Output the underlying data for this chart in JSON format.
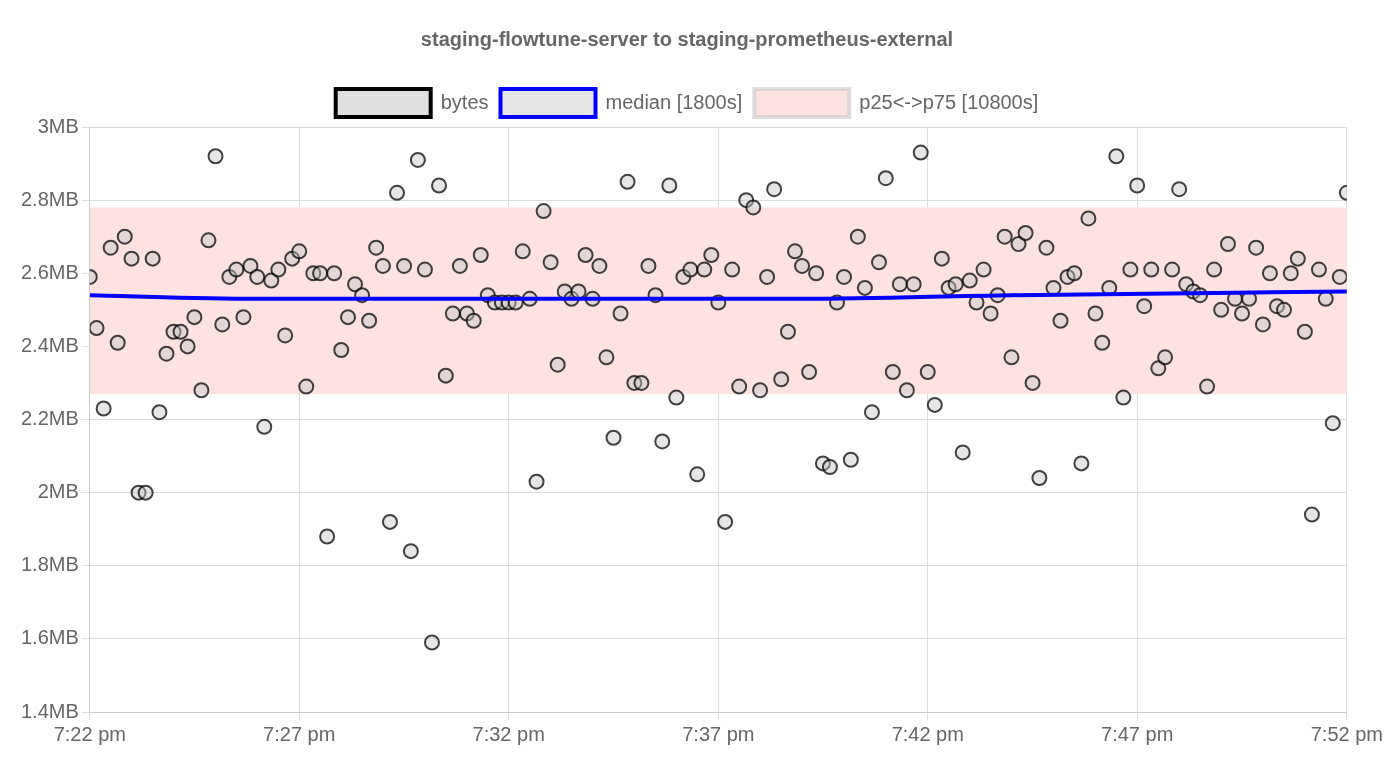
{
  "chart_data": {
    "type": "scatter",
    "title": "staging-flowtune-server to staging-prometheus-external",
    "xlim": [
      19.3667,
      19.8667
    ],
    "xticks": [
      {
        "value": 19.3667,
        "label": "7:22 pm"
      },
      {
        "value": 19.45,
        "label": "7:27 pm"
      },
      {
        "value": 19.5333,
        "label": "7:32 pm"
      },
      {
        "value": 19.6167,
        "label": "7:37 pm"
      },
      {
        "value": 19.7,
        "label": "7:42 pm"
      },
      {
        "value": 19.7833,
        "label": "7:47 pm"
      },
      {
        "value": 19.8667,
        "label": "7:52 pm"
      }
    ],
    "ylim": [
      1.4,
      3
    ],
    "yticks": [
      {
        "value": 1.4,
        "label": "1.4MB"
      },
      {
        "value": 1.6,
        "label": "1.6MB"
      },
      {
        "value": 1.8,
        "label": "1.8MB"
      },
      {
        "value": 2,
        "label": "2MB"
      },
      {
        "value": 2.2,
        "label": "2.2MB"
      },
      {
        "value": 2.4,
        "label": "2.4MB"
      },
      {
        "value": 2.6,
        "label": "2.6MB"
      },
      {
        "value": 2.8,
        "label": "2.8MB"
      },
      {
        "value": 3,
        "label": "3MB"
      }
    ],
    "grid": true,
    "legend": "top",
    "x": [
      19.3667,
      19.3694,
      19.3722,
      19.375,
      19.3778,
      19.3806,
      19.3833,
      19.3861,
      19.3889,
      19.3917,
      19.3944,
      19.3972,
      19.4,
      19.4028,
      19.4056,
      19.4083,
      19.4111,
      19.4139,
      19.4167,
      19.4194,
      19.4222,
      19.425,
      19.4278,
      19.4306,
      19.4333,
      19.4361,
      19.4389,
      19.4417,
      19.4444,
      19.4472,
      19.45,
      19.4528,
      19.4556,
      19.4583,
      19.4611,
      19.4639,
      19.4667,
      19.4694,
      19.4722,
      19.475,
      19.4778,
      19.4806,
      19.4833,
      19.4861,
      19.4889,
      19.4917,
      19.4944,
      19.4972,
      19.5,
      19.5028,
      19.5056,
      19.5083,
      19.5111,
      19.5139,
      19.5167,
      19.5194,
      19.5222,
      19.525,
      19.5278,
      19.5306,
      19.5333,
      19.5361,
      19.5389,
      19.5417,
      19.5444,
      19.5472,
      19.55,
      19.5528,
      19.5556,
      19.5583,
      19.5611,
      19.5639,
      19.5667,
      19.5694,
      19.5722,
      19.575,
      19.5778,
      19.5806,
      19.5833,
      19.5861,
      19.5889,
      19.5917,
      19.5944,
      19.5972,
      19.6,
      19.6028,
      19.6056,
      19.6083,
      19.6111,
      19.6139,
      19.6167,
      19.6194,
      19.6222,
      19.625,
      19.6278,
      19.6306,
      19.6333,
      19.6361,
      19.6389,
      19.6417,
      19.6444,
      19.6472,
      19.65,
      19.6528,
      19.6556,
      19.6583,
      19.6611,
      19.6639,
      19.6667,
      19.6694,
      19.6722,
      19.675,
      19.6778,
      19.6806,
      19.6833,
      19.6861,
      19.6889,
      19.6917,
      19.6944,
      19.6972,
      19.7,
      19.7028,
      19.7056,
      19.7083,
      19.7111,
      19.7139,
      19.7167,
      19.7194,
      19.7222,
      19.725,
      19.7278,
      19.7306,
      19.7333,
      19.7361,
      19.7389,
      19.7417,
      19.7444,
      19.7472,
      19.75,
      19.7528,
      19.7556,
      19.7583,
      19.7611,
      19.7639,
      19.7667,
      19.7694,
      19.7722,
      19.775,
      19.7778,
      19.7806,
      19.7833,
      19.7861,
      19.7889,
      19.7917,
      19.7944,
      19.7972,
      19.8,
      19.8028,
      19.8056,
      19.8083,
      19.8111,
      19.8139,
      19.8167,
      19.8194,
      19.8222,
      19.825,
      19.8278,
      19.8306,
      19.8333,
      19.8361,
      19.8389,
      19.8417,
      19.8444,
      19.8472,
      19.85,
      19.8528,
      19.8556,
      19.8583,
      19.8611,
      19.8639,
      19.8667
    ],
    "series": [
      {
        "name": "bytes",
        "marker": "circle",
        "color": "#000000",
        "values": [
          2.59,
          2.45,
          2.23,
          2.67,
          2.41,
          2.7,
          2.64,
          2.0,
          2.0,
          2.64,
          2.22,
          2.38,
          2.44,
          2.44,
          2.4,
          2.48,
          2.28,
          2.69,
          2.92,
          2.46,
          2.59,
          2.61,
          2.48,
          2.62,
          2.59,
          2.18,
          2.58,
          2.61,
          2.43,
          2.64,
          2.66,
          2.29,
          2.6,
          2.6,
          1.88,
          2.6,
          2.39,
          2.48,
          2.57,
          2.54,
          2.47,
          2.67,
          2.62,
          1.92,
          2.82,
          2.62,
          1.84,
          2.91,
          2.61,
          1.59,
          2.84,
          2.32,
          2.49,
          2.62,
          2.49,
          2.47,
          2.65,
          2.54,
          2.52,
          2.52,
          2.52,
          2.52,
          2.66,
          2.53,
          2.03,
          2.77,
          2.63,
          2.35,
          2.55,
          2.53,
          2.55,
          2.65,
          2.53,
          2.62,
          2.37,
          2.15,
          2.49,
          2.85,
          2.3,
          2.3,
          2.62,
          2.54,
          2.14,
          2.84,
          2.26,
          2.59,
          2.61,
          2.05,
          2.61,
          2.65,
          2.52,
          1.92,
          2.61,
          2.29,
          2.8,
          2.78,
          2.28,
          2.59,
          2.83,
          2.31,
          2.44,
          2.66,
          2.62,
          2.33,
          2.6,
          2.08,
          2.07,
          2.52,
          2.59,
          2.09,
          2.7,
          2.56,
          2.22,
          2.63,
          2.86,
          2.33,
          2.57,
          2.28,
          2.57,
          2.93,
          2.33,
          2.24,
          2.64,
          2.56,
          2.57,
          2.11,
          2.58,
          2.52,
          2.61,
          2.49,
          2.54,
          2.7,
          2.37,
          2.68,
          2.71,
          2.3,
          2.04,
          2.67,
          2.56,
          2.47,
          2.59,
          2.6,
          2.08,
          2.75,
          2.49,
          2.41,
          2.56,
          2.92,
          2.26,
          2.61,
          2.84,
          2.51,
          2.61,
          2.34,
          2.37,
          2.61,
          2.83,
          2.57,
          2.55,
          2.54,
          2.29,
          2.61,
          2.5,
          2.68,
          2.53,
          2.49,
          2.53,
          2.67,
          2.46,
          2.6,
          2.51,
          2.5,
          2.6,
          2.64,
          2.44,
          1.94,
          2.61,
          2.53,
          2.19,
          2.59,
          2.82
        ]
      },
      {
        "name": "median [1800s]",
        "type": "line",
        "marker": "none",
        "color": "#0000ff",
        "x": [
          19.3667,
          19.4333,
          19.5333,
          19.65,
          19.7333,
          19.8667
        ],
        "values": [
          2.54,
          2.53,
          2.53,
          2.53,
          2.54,
          2.55
        ]
      }
    ],
    "bands": [
      {
        "axis": "y",
        "from": 2.27,
        "to": 2.78,
        "label": "p25<->p75 [10800s]",
        "color": "#fde2e2"
      }
    ]
  }
}
